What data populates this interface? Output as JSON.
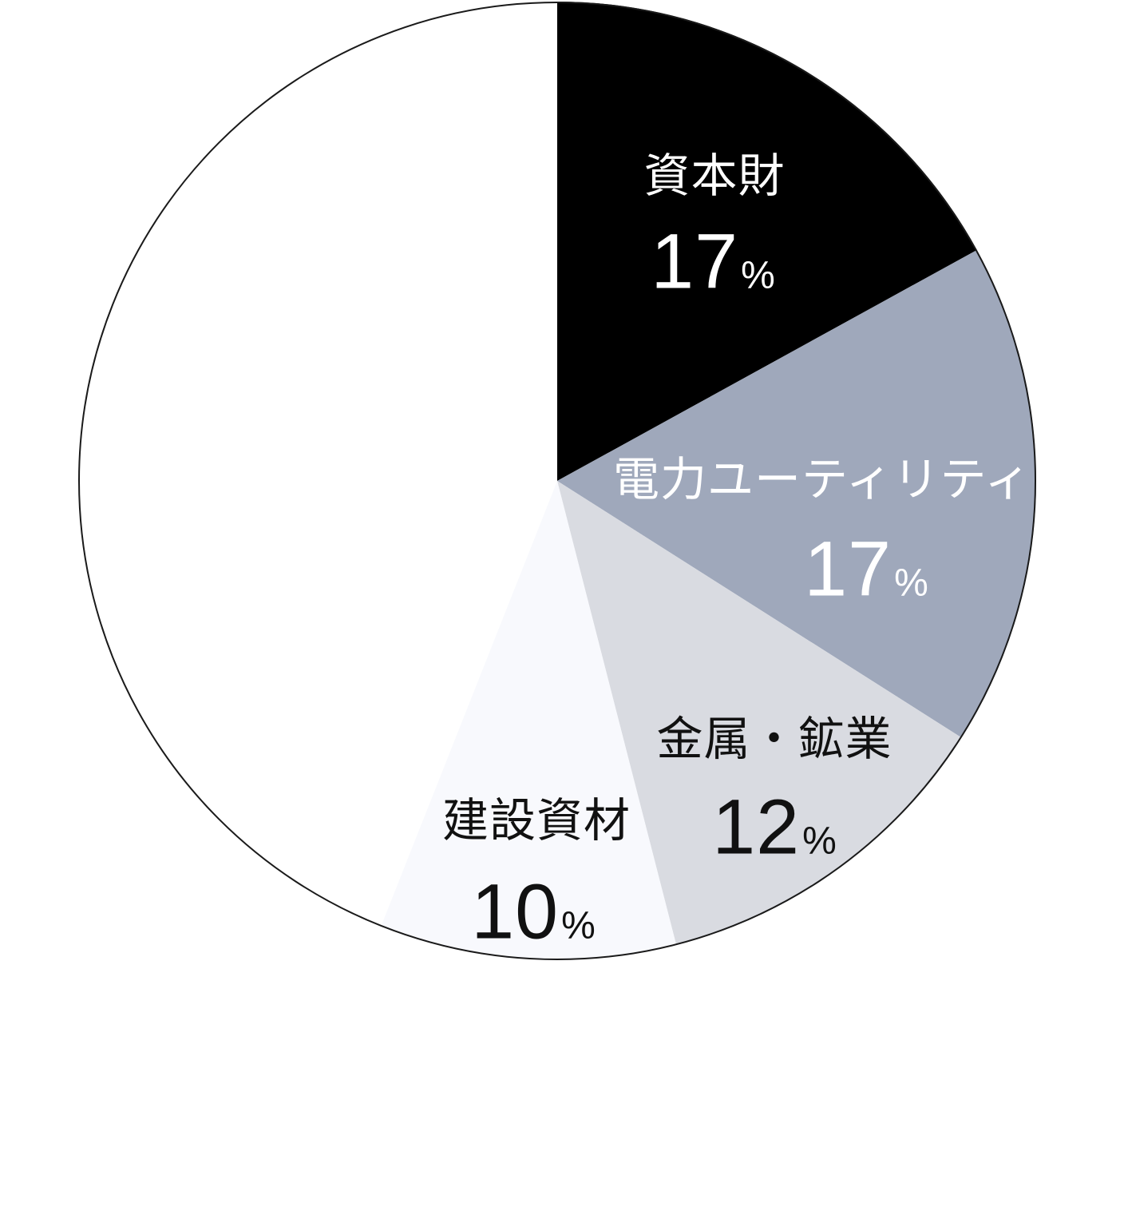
{
  "chart_data": {
    "type": "pie",
    "title": "",
    "start_angle_deg": 0,
    "direction": "clockwise",
    "total": 100,
    "background_color": "#ffffff",
    "outline_color": "#1a1a1a",
    "slices": [
      {
        "label": "資本財",
        "value": 17,
        "unit": "%",
        "color": "#000000",
        "label_color": "#ffffff"
      },
      {
        "label": "電力ユーティリティ",
        "value": 17,
        "unit": "%",
        "color": "#9fa8bb",
        "label_color": "#ffffff"
      },
      {
        "label": "金属・鉱業",
        "value": 12,
        "unit": "%",
        "color": "#d9dbe1",
        "label_color": "#111111"
      },
      {
        "label": "建設資材",
        "value": 10,
        "unit": "%",
        "color": "#f8f9fd",
        "label_color": "#111111"
      },
      {
        "label": "",
        "value": 44,
        "unit": "%",
        "color": "#ffffff",
        "label_color": ""
      }
    ]
  }
}
